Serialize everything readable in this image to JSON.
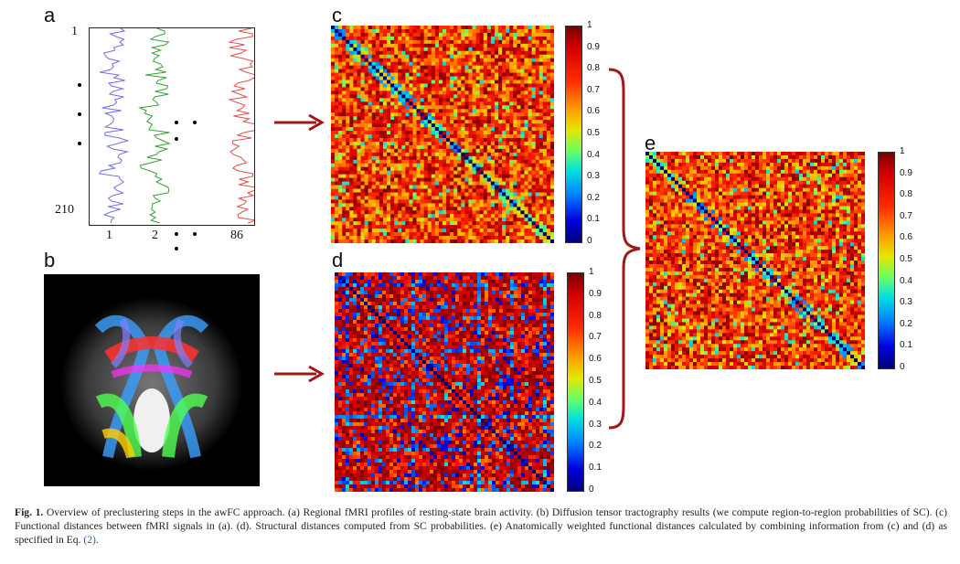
{
  "panels": {
    "a": {
      "letter": "a",
      "y_top_label": "1",
      "y_bottom_label": "210",
      "x_labels": [
        "1",
        "2",
        "86"
      ],
      "series_colors": [
        "#7070e0",
        "#3aa03a",
        "#e05050"
      ]
    },
    "b": {
      "letter": "b"
    },
    "c": {
      "letter": "c",
      "colorbar_ticks": [
        "1",
        "0.9",
        "0.8",
        "0.7",
        "0.6",
        "0.5",
        "0.4",
        "0.3",
        "0.2",
        "0.1",
        "0"
      ]
    },
    "d": {
      "letter": "d",
      "colorbar_ticks": [
        "1",
        "0.9",
        "0.8",
        "0.7",
        "0.6",
        "0.5",
        "0.4",
        "0.3",
        "0.2",
        "0.1",
        "0"
      ]
    },
    "e": {
      "letter": "e",
      "colorbar_ticks": [
        "1",
        "0.9",
        "0.8",
        "0.7",
        "0.6",
        "0.5",
        "0.4",
        "0.3",
        "0.2",
        "0.1",
        "0"
      ]
    }
  },
  "colors": {
    "arrow": "#a01818",
    "brace": "#a01818"
  },
  "caption": {
    "label": "Fig. 1.",
    "text": " Overview of preclustering steps in the awFC approach. (a) Regional fMRI profiles of resting-state brain activity. (b) Diffusion tensor tractography results (we compute region-to-region probabilities of SC). (c) Functional distances between fMRI signals in (a). (d). Structural distances computed from SC probabilities. (e) Anatomically weighted functional distances calculated by combining information from (c) and (d) as specified in Eq. ",
    "eq_ref": "(2)",
    "end": "."
  }
}
